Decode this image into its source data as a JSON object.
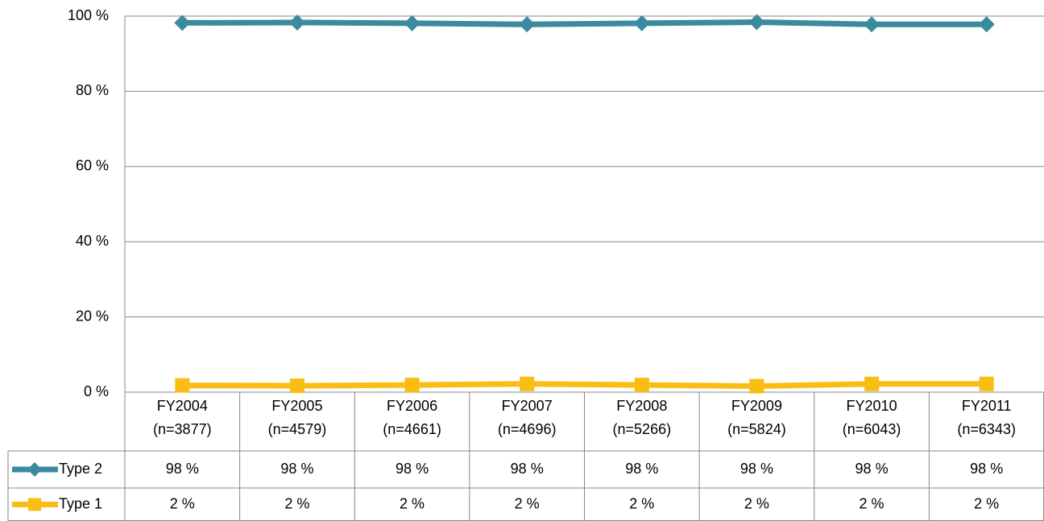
{
  "chart_data": {
    "type": "line",
    "categories": [
      "FY2004\n(n=3877)",
      "FY2005\n(n=4579)",
      "FY2006\n(n=4661)",
      "FY2007\n(n=4696)",
      "FY2008\n(n=5266)",
      "FY2009\n(n=5824)",
      "FY2010\n(n=6043)",
      "FY2011\n(n=6343)"
    ],
    "series": [
      {
        "name": "Type 2",
        "color": "#3a8aa0",
        "marker": "diamond",
        "values": [
          98.2,
          98.3,
          98.1,
          97.8,
          98.1,
          98.4,
          97.8,
          97.8
        ],
        "value_labels": [
          "98 %",
          "98 %",
          "98 %",
          "98 %",
          "98 %",
          "98 %",
          "98 %",
          "98 %"
        ]
      },
      {
        "name": "Type 1",
        "color": "#f9be14",
        "marker": "square",
        "values": [
          1.8,
          1.7,
          1.9,
          2.2,
          1.9,
          1.6,
          2.2,
          2.2
        ],
        "value_labels": [
          "2 %",
          "2 %",
          "2 %",
          "2 %",
          "2 %",
          "2 %",
          "2 %",
          "2 %"
        ]
      }
    ],
    "ylim": [
      0,
      100
    ],
    "yticks": [
      {
        "value": 0,
        "label": "0 %"
      },
      {
        "value": 20,
        "label": "20 %"
      },
      {
        "value": 40,
        "label": "40 %"
      },
      {
        "value": 60,
        "label": "60 %"
      },
      {
        "value": 80,
        "label": "80 %"
      },
      {
        "value": 100,
        "label": "100 %"
      }
    ],
    "grid": true
  }
}
